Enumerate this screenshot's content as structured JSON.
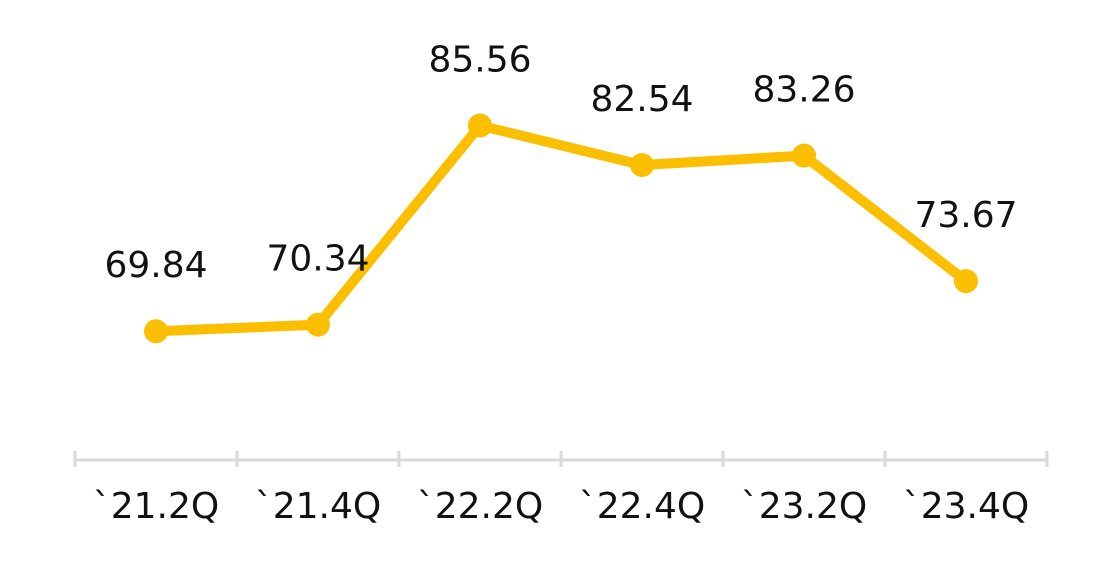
{
  "chart_data": {
    "type": "line",
    "categories": [
      "`21.2Q",
      "`21.4Q",
      "`22.2Q",
      "`22.4Q",
      "`23.2Q",
      "`23.4Q"
    ],
    "series": [
      {
        "color": "#fbbf00",
        "values": [
          69.84,
          70.34,
          85.56,
          82.54,
          83.26,
          73.67
        ]
      }
    ],
    "ylim": [
      60,
      95
    ]
  }
}
